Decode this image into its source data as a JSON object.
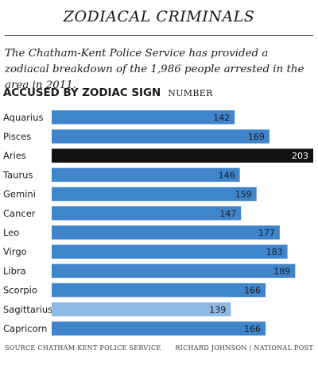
{
  "header": {
    "title": "ZODIACAL CRIMINALS",
    "subtitle": "The Chatham-Kent Police Service has provided a zodiacal breakdown of the 1,986 people arrested in the area in 2011."
  },
  "chart_data": {
    "type": "bar",
    "orientation": "horizontal",
    "title": "ACCUSED BY ZODIAC SIGN",
    "unit_label": "NUMBER",
    "categories": [
      "Aquarius",
      "Pisces",
      "Aries",
      "Taurus",
      "Gemini",
      "Cancer",
      "Leo",
      "Virgo",
      "Libra",
      "Scorpio",
      "Sagittarius",
      "Capricorn"
    ],
    "values": [
      142,
      169,
      203,
      146,
      159,
      147,
      177,
      183,
      189,
      166,
      139,
      166
    ],
    "xlim": [
      0,
      203
    ],
    "grid": false,
    "colors": {
      "default": "#3f85cc",
      "highlight_max": "#111111",
      "highlight_min": "#8fb8e3"
    }
  },
  "footer": {
    "source": "SOURCE CHATHAM-KENT POLICE SERVICE",
    "credit": "RICHARD JOHNSON / NATIONAL POST"
  }
}
